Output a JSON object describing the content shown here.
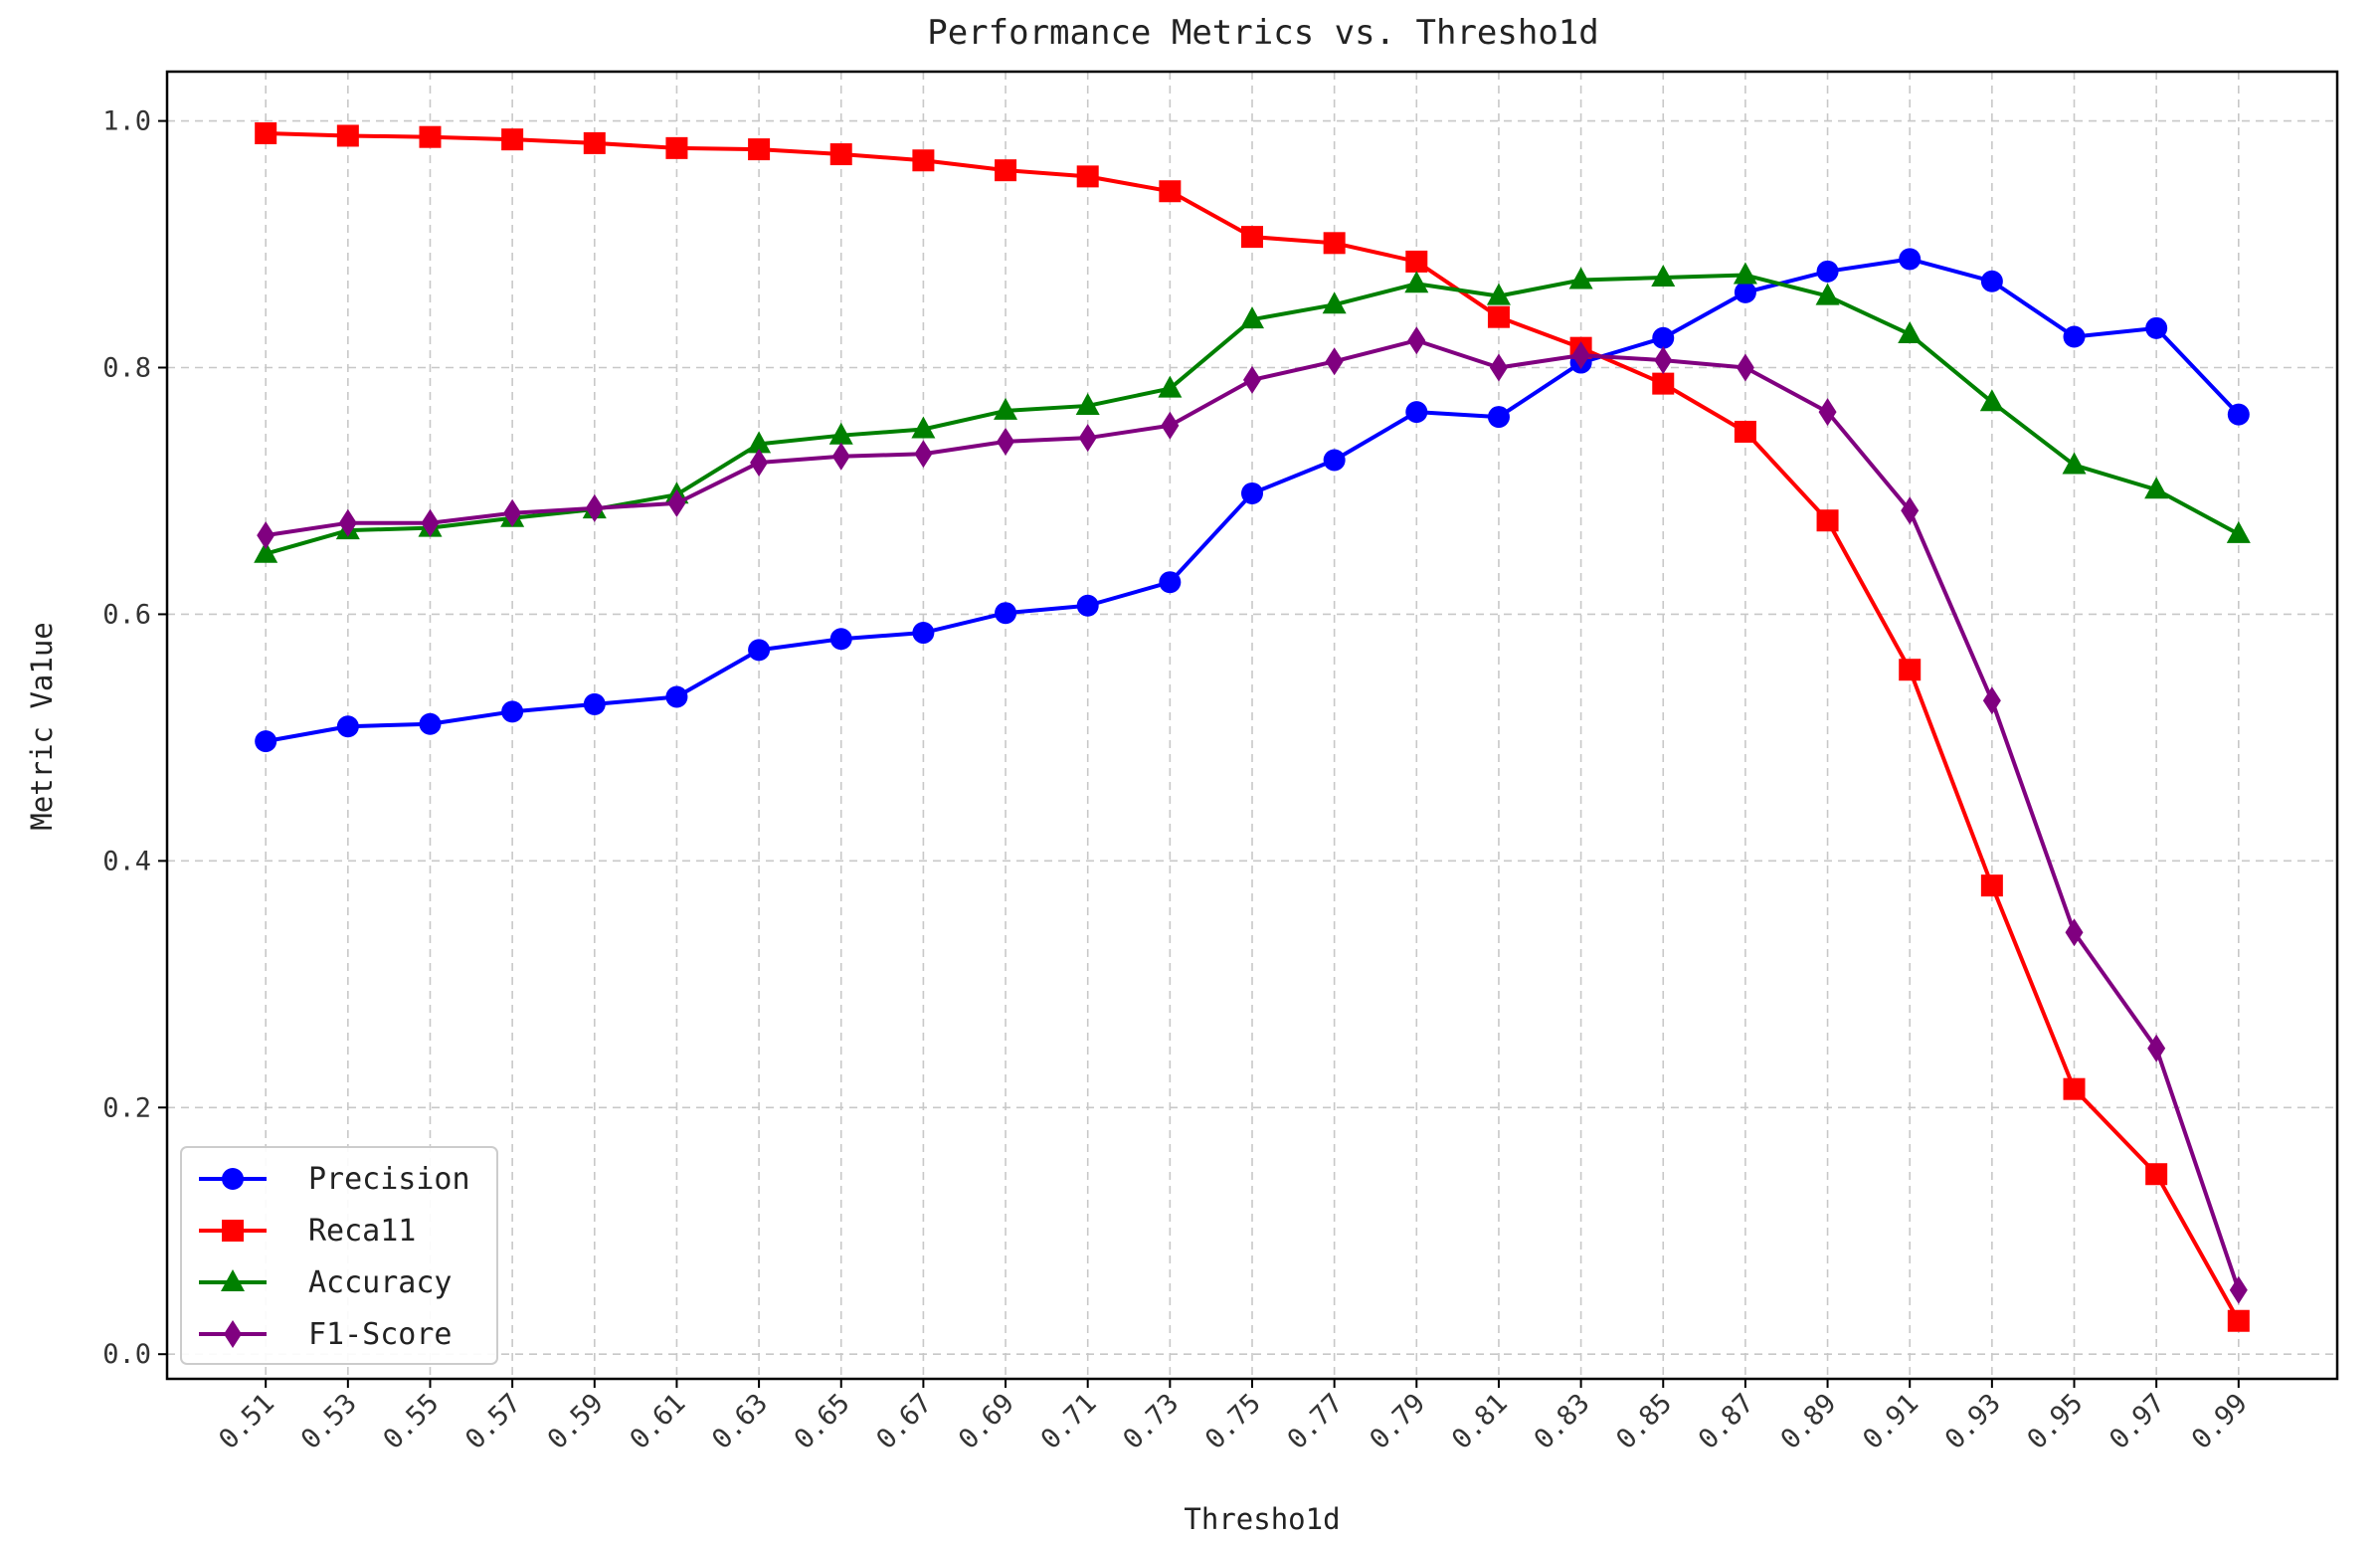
{
  "chart_data": {
    "type": "line",
    "title": "Performance Metrics vs. Thresho1d",
    "xlabel": "Thresho1d",
    "ylabel": "Metric Va1ue",
    "x": [
      0.51,
      0.53,
      0.55,
      0.57,
      0.59,
      0.61,
      0.63,
      0.65,
      0.67,
      0.69,
      0.71,
      0.73,
      0.75,
      0.77,
      0.79,
      0.81,
      0.83,
      0.85,
      0.87,
      0.89,
      0.91,
      0.93,
      0.95,
      0.97,
      0.99
    ],
    "x_tick_labels": [
      "0.51",
      "0.53",
      "0.55",
      "0.57",
      "0.59",
      "0.61",
      "0.63",
      "0.65",
      "0.67",
      "0.69",
      "0.71",
      "0.73",
      "0.75",
      "0.77",
      "0.79",
      "0.81",
      "0.83",
      "0.85",
      "0.87",
      "0.89",
      "0.91",
      "0.93",
      "0.95",
      "0.97",
      "0.99"
    ],
    "y_ticks": [
      0.0,
      0.2,
      0.4,
      0.6,
      0.8,
      1.0
    ],
    "y_tick_labels": [
      "0.0",
      "0.2",
      "0.4",
      "0.6",
      "0.8",
      "1.0"
    ],
    "ylim": [
      -0.02,
      1.04
    ],
    "xlim": [
      0.486,
      1.014
    ],
    "grid": true,
    "legend_position": "lower-left",
    "series": [
      {
        "name": "Precision",
        "color": "#0000ff",
        "marker": "circle",
        "values": [
          0.497,
          0.509,
          0.511,
          0.521,
          0.527,
          0.533,
          0.571,
          0.58,
          0.585,
          0.601,
          0.607,
          0.626,
          0.698,
          0.725,
          0.764,
          0.76,
          0.804,
          0.824,
          0.861,
          0.878,
          0.888,
          0.87,
          0.825,
          0.832,
          0.762
        ]
      },
      {
        "name": "Reca11",
        "color": "#ff0000",
        "marker": "square",
        "values": [
          0.99,
          0.988,
          0.987,
          0.985,
          0.982,
          0.978,
          0.977,
          0.973,
          0.968,
          0.96,
          0.955,
          0.943,
          0.906,
          0.901,
          0.886,
          0.841,
          0.816,
          0.787,
          0.748,
          0.676,
          0.555,
          0.38,
          0.215,
          0.146,
          0.027
        ]
      },
      {
        "name": "Accuracy",
        "color": "#008000",
        "marker": "triangle",
        "values": [
          0.649,
          0.668,
          0.67,
          0.678,
          0.685,
          0.697,
          0.738,
          0.745,
          0.75,
          0.765,
          0.769,
          0.783,
          0.839,
          0.851,
          0.868,
          0.858,
          0.871,
          0.873,
          0.875,
          0.858,
          0.827,
          0.772,
          0.721,
          0.701,
          0.665
        ]
      },
      {
        "name": "F1-Score",
        "color": "#800080",
        "marker": "diamond",
        "values": [
          0.664,
          0.674,
          0.674,
          0.682,
          0.686,
          0.69,
          0.723,
          0.728,
          0.73,
          0.74,
          0.743,
          0.753,
          0.79,
          0.805,
          0.822,
          0.8,
          0.81,
          0.806,
          0.8,
          0.764,
          0.684,
          0.53,
          0.342,
          0.248,
          0.052
        ]
      }
    ]
  }
}
